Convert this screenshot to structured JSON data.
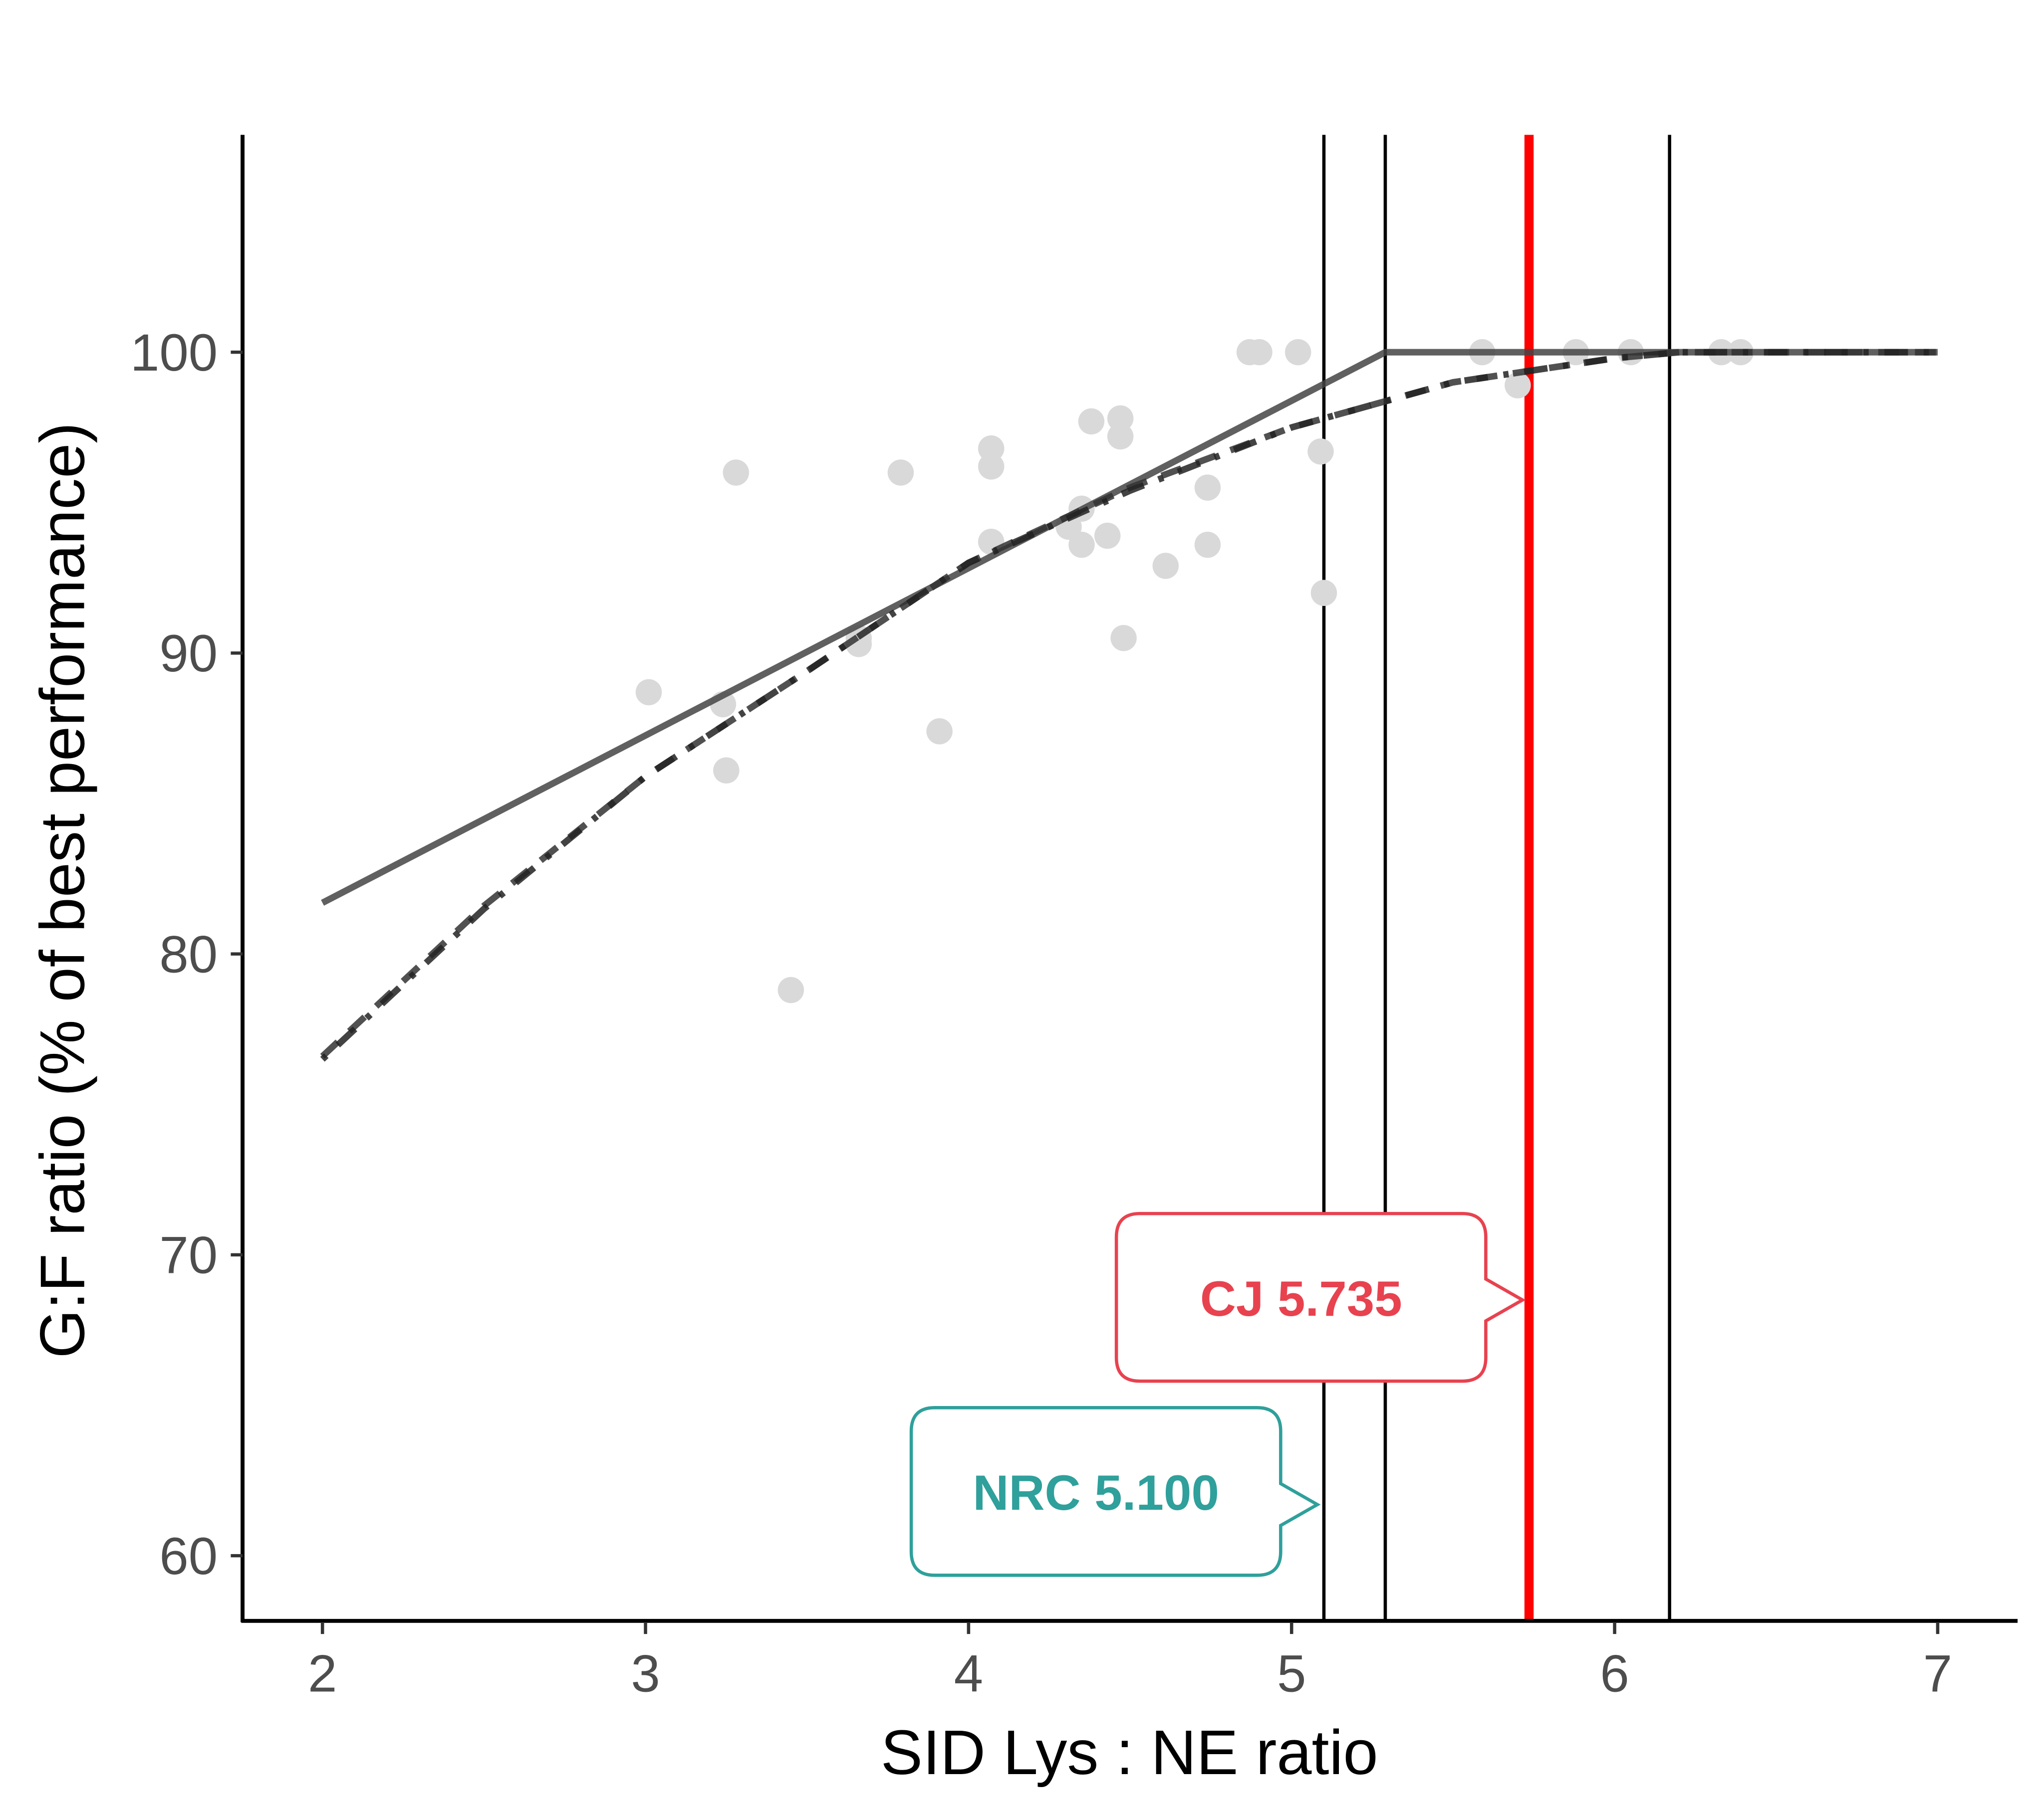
{
  "chart_data": {
    "type": "scatter",
    "title": "",
    "xlabel": "SID Lys : NE ratio",
    "ylabel": "G:F ratio (% of best performance)",
    "xlim": [
      1.75,
      7.25
    ],
    "ylim": [
      57.8,
      107.2
    ],
    "xticks": [
      2,
      3,
      4,
      5,
      6,
      7
    ],
    "yticks": [
      60,
      70,
      80,
      90,
      100
    ],
    "grid": false,
    "points_color": "#d9d9d9",
    "points": [
      [
        3.01,
        88.7
      ],
      [
        3.25,
        86.1
      ],
      [
        3.24,
        88.3
      ],
      [
        3.28,
        96.0
      ],
      [
        3.45,
        78.8
      ],
      [
        3.66,
        90.3
      ],
      [
        3.66,
        90.5
      ],
      [
        3.79,
        96.0
      ],
      [
        3.91,
        87.4
      ],
      [
        4.07,
        96.8
      ],
      [
        4.07,
        96.2
      ],
      [
        4.07,
        93.7
      ],
      [
        4.31,
        94.2
      ],
      [
        4.35,
        94.8
      ],
      [
        4.35,
        93.6
      ],
      [
        4.38,
        97.7
      ],
      [
        4.43,
        93.9
      ],
      [
        4.47,
        97.8
      ],
      [
        4.47,
        97.2
      ],
      [
        4.48,
        90.5
      ],
      [
        4.61,
        92.9
      ],
      [
        4.74,
        95.5
      ],
      [
        4.74,
        93.6
      ],
      [
        4.87,
        100
      ],
      [
        4.9,
        100
      ],
      [
        5.02,
        100
      ],
      [
        5.09,
        96.7
      ],
      [
        5.1,
        92.0
      ],
      [
        5.59,
        100
      ],
      [
        5.7,
        98.9
      ],
      [
        5.88,
        100
      ],
      [
        6.05,
        100
      ],
      [
        6.33,
        100
      ],
      [
        6.39,
        100
      ]
    ],
    "fits": [
      {
        "style": "solid",
        "color": "#444444",
        "x": [
          2,
          5.29,
          7
        ],
        "y": [
          81.7,
          100,
          100
        ]
      },
      {
        "style": "dashed",
        "color": "#333333",
        "x": [
          2,
          2.5,
          3,
          3.5,
          4,
          4.5,
          5,
          5.3,
          5.5,
          6,
          6.2,
          7
        ],
        "y": [
          76.6,
          81.6,
          85.9,
          89.4,
          93.0,
          95.5,
          97.5,
          98.4,
          99.0,
          99.8,
          100,
          100
        ]
      },
      {
        "style": "dotdash",
        "color": "#222222",
        "x": [
          2,
          2.5,
          3,
          3.5,
          4,
          4.5,
          5,
          5.3,
          5.5,
          6,
          6.2,
          7
        ],
        "y": [
          76.5,
          81.5,
          85.9,
          89.4,
          93.0,
          95.4,
          97.5,
          98.4,
          99.0,
          99.8,
          100,
          100
        ]
      }
    ],
    "vlines": [
      {
        "x": 5.1,
        "color": "#000000"
      },
      {
        "x": 5.29,
        "color": "#000000"
      },
      {
        "x": 6.17,
        "color": "#000000"
      },
      {
        "x": 5.735,
        "color": "#ff0000"
      }
    ],
    "annotations": [
      {
        "text": "CJ 5.735",
        "x": 5.735,
        "y": 68.5,
        "color": "#e8424f"
      },
      {
        "text": "NRC 5.100",
        "x": 5.1,
        "y": 61.7,
        "color": "#2fa09b"
      }
    ]
  }
}
